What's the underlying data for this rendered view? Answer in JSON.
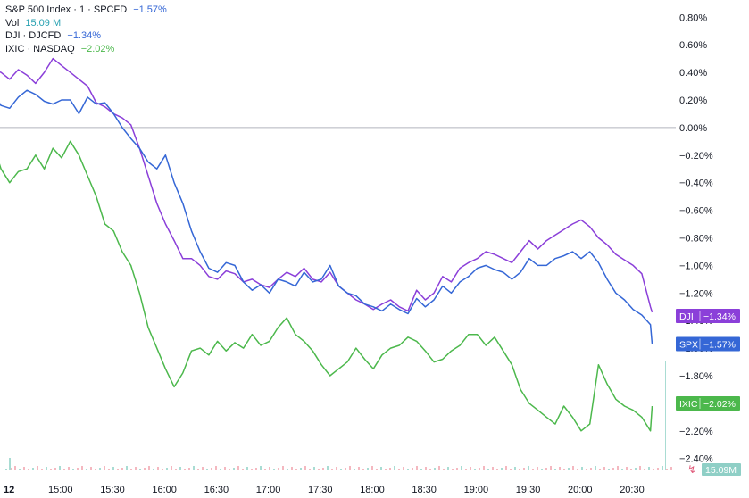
{
  "legend": {
    "spx": {
      "name": "S&P 500 Index · 1 · SPCFD",
      "value": "−1.57%"
    },
    "vol": {
      "name": "Vol",
      "value": "15.09 M"
    },
    "dji": {
      "name": "DJI · DJCFD",
      "value": "−1.34%"
    },
    "ixic": {
      "name": "IXIC · NASDAQ",
      "value": "−2.02%"
    }
  },
  "colors": {
    "spx": "#3567d6",
    "dji": "#8b3fd9",
    "ixic": "#4cb84c",
    "vol": "#26a0b0",
    "zero": "#b2b5be",
    "spx_ref": "#5b8bd6"
  },
  "chart_data": {
    "type": "line",
    "ylim": [
      -2.46,
      0.86
    ],
    "y_ticks": [
      "0.80%",
      "0.60%",
      "0.40%",
      "0.20%",
      "0.00%",
      "−0.20%",
      "−0.40%",
      "−0.60%",
      "−0.80%",
      "−1.00%",
      "−1.20%",
      "−1.40%",
      "−1.60%",
      "−1.80%",
      "−2.00%",
      "−2.20%",
      "−2.40%"
    ],
    "y_tick_values": [
      0.8,
      0.6,
      0.4,
      0.2,
      0,
      -0.2,
      -0.4,
      -0.6,
      -0.8,
      -1.0,
      -1.2,
      -1.4,
      -1.6,
      -1.8,
      -2.0,
      -2.2,
      -2.4
    ],
    "x_ticks": [
      {
        "label": "12",
        "t": -58
      },
      {
        "label": "15:00",
        "t": 0
      },
      {
        "label": "15:30",
        "t": 30
      },
      {
        "label": "16:00",
        "t": 60
      },
      {
        "label": "16:30",
        "t": 90
      },
      {
        "label": "17:00",
        "t": 120
      },
      {
        "label": "17:30",
        "t": 150
      },
      {
        "label": "18:00",
        "t": 180
      },
      {
        "label": "18:30",
        "t": 210
      },
      {
        "label": "19:00",
        "t": 240
      },
      {
        "label": "19:30",
        "t": 270
      },
      {
        "label": "20:00",
        "t": 300
      },
      {
        "label": "20:30",
        "t": 330
      }
    ],
    "x_unit": "minutes after 15:00",
    "series": [
      {
        "key": "spx",
        "badge": "SPX",
        "last": "−1.57%",
        "last_value": -1.57,
        "t": [
          -59,
          -57,
          -55,
          -53,
          -50,
          -45,
          -40,
          -35,
          -30,
          -25,
          -20,
          -15,
          -10,
          -5,
          0,
          5,
          10,
          15,
          20,
          25,
          30,
          35,
          40,
          45,
          50,
          55,
          60,
          65,
          70,
          75,
          80,
          85,
          90,
          95,
          100,
          105,
          110,
          115,
          120,
          125,
          130,
          135,
          140,
          145,
          150,
          155,
          160,
          165,
          170,
          175,
          180,
          185,
          190,
          195,
          200,
          205,
          210,
          215,
          220,
          225,
          230,
          235,
          240,
          245,
          250,
          255,
          260,
          265,
          270,
          275,
          280,
          285,
          290,
          295,
          300,
          305,
          310,
          315,
          320,
          325,
          330,
          335,
          340,
          341
        ],
        "values": [
          0,
          0.3,
          0.45,
          0.4,
          0.38,
          0.3,
          0.26,
          0.16,
          0.14,
          0.22,
          0.27,
          0.24,
          0.19,
          0.17,
          0.2,
          0.2,
          0.1,
          0.22,
          0.17,
          0.18,
          0.1,
          0.0,
          -0.08,
          -0.15,
          -0.25,
          -0.3,
          -0.2,
          -0.4,
          -0.55,
          -0.75,
          -0.9,
          -1.02,
          -1.05,
          -0.98,
          -1.0,
          -1.12,
          -1.18,
          -1.14,
          -1.2,
          -1.1,
          -1.12,
          -1.15,
          -1.05,
          -1.12,
          -1.1,
          -1.0,
          -1.15,
          -1.2,
          -1.22,
          -1.28,
          -1.3,
          -1.33,
          -1.28,
          -1.32,
          -1.35,
          -1.24,
          -1.3,
          -1.25,
          -1.15,
          -1.2,
          -1.12,
          -1.08,
          -1.02,
          -1.0,
          -1.03,
          -1.05,
          -1.1,
          -1.05,
          -0.95,
          -1.0,
          -1.0,
          -0.95,
          -0.93,
          -0.9,
          -0.95,
          -0.9,
          -0.98,
          -1.1,
          -1.2,
          -1.25,
          -1.32,
          -1.36,
          -1.43,
          -1.57
        ]
      },
      {
        "key": "dji",
        "badge": "DJI",
        "last": "−1.34%",
        "last_value": -1.34,
        "t": [
          -59,
          -57,
          -55,
          -53,
          -50,
          -45,
          -40,
          -35,
          -30,
          -25,
          -20,
          -15,
          -10,
          -5,
          0,
          5,
          10,
          15,
          20,
          25,
          30,
          35,
          40,
          45,
          50,
          55,
          60,
          65,
          70,
          75,
          80,
          85,
          90,
          95,
          100,
          105,
          110,
          115,
          120,
          125,
          130,
          135,
          140,
          145,
          150,
          155,
          160,
          165,
          170,
          175,
          180,
          185,
          190,
          195,
          200,
          205,
          210,
          215,
          220,
          225,
          230,
          235,
          240,
          245,
          250,
          255,
          260,
          265,
          270,
          275,
          280,
          285,
          290,
          295,
          300,
          305,
          310,
          315,
          320,
          325,
          330,
          335,
          340,
          341
        ],
        "values": [
          0,
          0.45,
          0.6,
          0.55,
          0.5,
          0.48,
          0.42,
          0.4,
          0.35,
          0.42,
          0.38,
          0.32,
          0.4,
          0.5,
          0.45,
          0.4,
          0.35,
          0.3,
          0.18,
          0.15,
          0.1,
          0.07,
          0.02,
          -0.15,
          -0.35,
          -0.55,
          -0.7,
          -0.82,
          -0.95,
          -0.95,
          -1.0,
          -1.08,
          -1.1,
          -1.04,
          -1.06,
          -1.12,
          -1.1,
          -1.14,
          -1.16,
          -1.1,
          -1.05,
          -1.08,
          -1.02,
          -1.1,
          -1.12,
          -1.05,
          -1.15,
          -1.2,
          -1.25,
          -1.28,
          -1.32,
          -1.28,
          -1.25,
          -1.3,
          -1.33,
          -1.18,
          -1.25,
          -1.2,
          -1.08,
          -1.12,
          -1.02,
          -0.98,
          -0.95,
          -0.9,
          -0.92,
          -0.95,
          -0.98,
          -0.9,
          -0.82,
          -0.88,
          -0.82,
          -0.78,
          -0.74,
          -0.7,
          -0.67,
          -0.72,
          -0.8,
          -0.85,
          -0.92,
          -0.96,
          -1.0,
          -1.06,
          -1.3,
          -1.34
        ]
      },
      {
        "key": "ixic",
        "badge": "IXIC",
        "last": "−2.02%",
        "last_value": -2.02,
        "t": [
          -59,
          -57,
          -55,
          -53,
          -50,
          -45,
          -40,
          -35,
          -30,
          -25,
          -20,
          -15,
          -10,
          -5,
          0,
          5,
          10,
          15,
          20,
          25,
          30,
          35,
          40,
          45,
          50,
          55,
          60,
          65,
          70,
          75,
          80,
          85,
          90,
          95,
          100,
          105,
          110,
          115,
          120,
          125,
          130,
          135,
          140,
          145,
          150,
          155,
          160,
          165,
          170,
          175,
          180,
          185,
          190,
          195,
          200,
          205,
          210,
          215,
          220,
          225,
          230,
          235,
          240,
          245,
          250,
          255,
          260,
          265,
          270,
          275,
          280,
          285,
          290,
          295,
          300,
          305,
          310,
          315,
          320,
          325,
          330,
          335,
          340,
          341
        ],
        "values": [
          0,
          0.32,
          0.42,
          0.35,
          0.2,
          0.0,
          -0.1,
          -0.3,
          -0.4,
          -0.32,
          -0.3,
          -0.2,
          -0.3,
          -0.15,
          -0.22,
          -0.1,
          -0.2,
          -0.35,
          -0.5,
          -0.7,
          -0.75,
          -0.9,
          -1.0,
          -1.2,
          -1.45,
          -1.6,
          -1.75,
          -1.88,
          -1.78,
          -1.62,
          -1.6,
          -1.65,
          -1.55,
          -1.62,
          -1.56,
          -1.6,
          -1.5,
          -1.58,
          -1.55,
          -1.45,
          -1.38,
          -1.5,
          -1.55,
          -1.62,
          -1.72,
          -1.8,
          -1.75,
          -1.7,
          -1.6,
          -1.68,
          -1.75,
          -1.65,
          -1.6,
          -1.58,
          -1.52,
          -1.55,
          -1.62,
          -1.7,
          -1.68,
          -1.62,
          -1.58,
          -1.5,
          -1.5,
          -1.58,
          -1.52,
          -1.62,
          -1.72,
          -1.9,
          -2.0,
          -2.05,
          -2.1,
          -2.15,
          -2.02,
          -2.1,
          -2.2,
          -2.15,
          -1.72,
          -1.86,
          -1.97,
          -2.02,
          -2.05,
          -2.1,
          -2.2,
          -2.02
        ]
      }
    ],
    "volume_label": "15.09M"
  }
}
